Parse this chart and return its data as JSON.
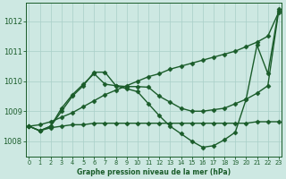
{
  "background_color": "#cde8e2",
  "grid_color": "#a8cfc8",
  "line_color": "#1a5c2a",
  "title": "Graphe pression niveau de la mer (hPa)",
  "xlim": [
    -0.3,
    23.3
  ],
  "ylim": [
    1007.5,
    1012.6
  ],
  "yticks": [
    1008,
    1009,
    1010,
    1011,
    1012
  ],
  "xticks": [
    0,
    1,
    2,
    3,
    4,
    5,
    6,
    7,
    8,
    9,
    10,
    11,
    12,
    13,
    14,
    15,
    16,
    17,
    18,
    19,
    20,
    21,
    22,
    23
  ],
  "series": [
    {
      "x": [
        0,
        1,
        2,
        3,
        4,
        5,
        6,
        7,
        8,
        9,
        10,
        11,
        12,
        13,
        14,
        15,
        16,
        17,
        18,
        19,
        20,
        21,
        22,
        23
      ],
      "y": [
        1008.5,
        1008.55,
        1008.65,
        1008.8,
        1008.95,
        1009.15,
        1009.35,
        1009.55,
        1009.7,
        1009.85,
        1010.0,
        1010.15,
        1010.25,
        1010.4,
        1010.5,
        1010.6,
        1010.7,
        1010.8,
        1010.9,
        1011.0,
        1011.15,
        1011.3,
        1011.5,
        1012.3
      ],
      "marker": "D",
      "markersize": 2.5,
      "linewidth": 1.0
    },
    {
      "x": [
        0,
        1,
        2,
        3,
        4,
        5,
        6,
        7,
        8,
        9,
        10,
        11,
        12,
        13,
        14,
        15,
        16,
        17,
        18,
        19,
        20,
        21,
        22,
        23
      ],
      "y": [
        1008.5,
        1008.35,
        1008.45,
        1008.5,
        1008.55,
        1008.55,
        1008.6,
        1008.6,
        1008.6,
        1008.6,
        1008.6,
        1008.6,
        1008.6,
        1008.6,
        1008.6,
        1008.6,
        1008.6,
        1008.6,
        1008.6,
        1008.6,
        1008.6,
        1008.65,
        1008.65,
        1008.65
      ],
      "marker": "D",
      "markersize": 2.5,
      "linewidth": 1.0
    },
    {
      "x": [
        0,
        1,
        2,
        3,
        4,
        5,
        6,
        7,
        8,
        9,
        10,
        11,
        12,
        13,
        14,
        15,
        16,
        17,
        18,
        19,
        20,
        21,
        22,
        23
      ],
      "y": [
        1008.5,
        1008.35,
        1008.5,
        1009.0,
        1009.5,
        1009.85,
        1010.3,
        1010.3,
        1009.85,
        1009.75,
        1009.65,
        1009.25,
        1008.85,
        1008.5,
        1008.25,
        1008.0,
        1007.8,
        1007.85,
        1008.05,
        1008.3,
        1009.4,
        1011.2,
        1010.25,
        1012.4
      ],
      "marker": "D",
      "markersize": 2.5,
      "linewidth": 1.0
    },
    {
      "x": [
        0,
        1,
        2,
        3,
        4,
        5,
        6,
        7,
        8,
        9,
        10,
        11,
        12,
        13,
        14,
        15,
        16,
        17,
        18,
        19,
        20,
        21,
        22,
        23
      ],
      "y": [
        1008.5,
        1008.35,
        1008.5,
        1009.1,
        1009.55,
        1009.9,
        1010.25,
        1009.9,
        1009.85,
        1009.82,
        1009.82,
        1009.8,
        1009.5,
        1009.3,
        1009.1,
        1009.0,
        1009.0,
        1009.05,
        1009.1,
        1009.25,
        1009.4,
        1009.6,
        1009.85,
        1012.35
      ],
      "marker": "D",
      "markersize": 2.5,
      "linewidth": 1.0
    }
  ]
}
